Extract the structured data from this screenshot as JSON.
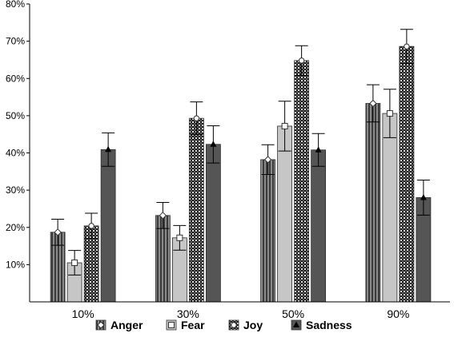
{
  "chart_data": {
    "type": "bar",
    "categories": [
      "10%",
      "30%",
      "50%",
      "90%"
    ],
    "series": [
      {
        "name": "Anger",
        "values": [
          18.7,
          23.2,
          38.2,
          53.3
        ],
        "error": [
          3.5,
          3.5,
          4.0,
          5.0
        ],
        "pattern": "vstripe",
        "marker": "diamond"
      },
      {
        "name": "Fear",
        "values": [
          10.5,
          17.2,
          47.2,
          50.6
        ],
        "error": [
          3.3,
          3.3,
          6.7,
          6.5
        ],
        "pattern": "light",
        "marker": "square"
      },
      {
        "name": "Joy",
        "values": [
          20.4,
          49.3,
          64.8,
          68.6
        ],
        "error": [
          3.4,
          4.4,
          4.0,
          4.6
        ],
        "pattern": "checker",
        "marker": "circle"
      },
      {
        "name": "Sadness",
        "values": [
          40.9,
          42.3,
          40.8,
          28.0
        ],
        "error": [
          4.5,
          5.0,
          4.4,
          4.7
        ],
        "pattern": "dark",
        "marker": "triangle"
      }
    ],
    "yticks": [
      "10%",
      "20%",
      "30%",
      "40%",
      "50%",
      "60%",
      "70%",
      "80%"
    ],
    "ylim": [
      0,
      80
    ],
    "title": "",
    "xlabel": "",
    "ylabel": "",
    "legend_position": "bottom",
    "grid": false,
    "colors": {
      "anger": "#5a5a5a",
      "fear": "#c6c6c6",
      "joy": "#2a2a2a",
      "sadness": "#555555",
      "axis": "#000000"
    }
  }
}
